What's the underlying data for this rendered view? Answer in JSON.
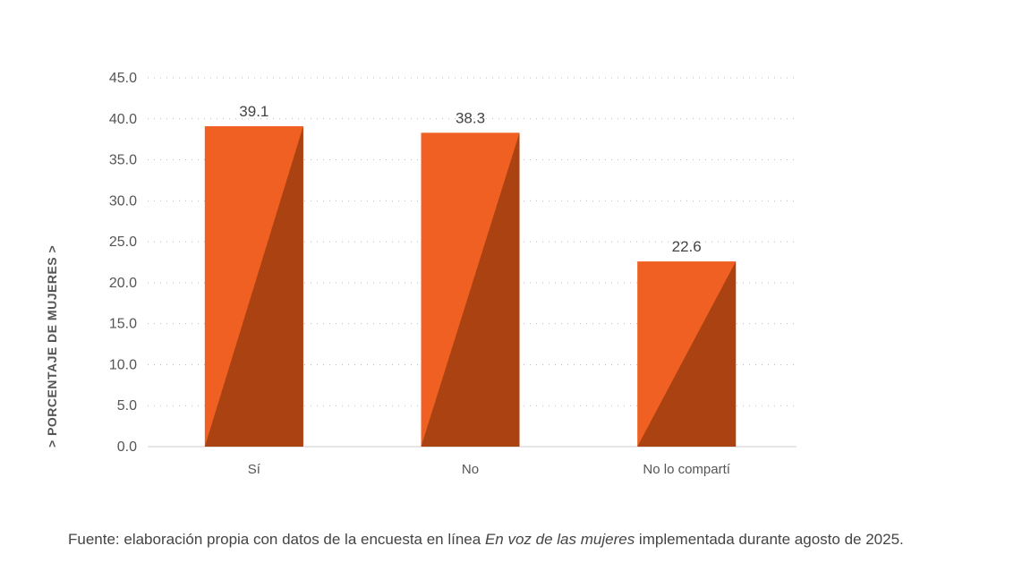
{
  "page": {
    "title_partial": "",
    "source": {
      "prefix": "Fuente: elaboración propia con datos de la encuesta en línea ",
      "survey": "En voz de las mujeres",
      "suffix": " implementada durante agosto de 2025."
    }
  },
  "chart_data": {
    "type": "bar",
    "title": "",
    "xlabel": "",
    "ylabel": "> PORCENTAJE DE MUJERES >",
    "categories": [
      "Sí",
      "No",
      "No lo compartí"
    ],
    "values": [
      39.1,
      38.3,
      22.6
    ],
    "value_labels": [
      "39.1",
      "38.3",
      "22.6"
    ],
    "ylim": [
      0,
      45
    ],
    "yticks": [
      0,
      5,
      10,
      15,
      20,
      25,
      30,
      35,
      40,
      45
    ],
    "ytick_labels": [
      "0.0",
      "5.0",
      "10.0",
      "15.0",
      "20.0",
      "25.0",
      "30.0",
      "35.0",
      "40.0",
      "45.0"
    ],
    "grid": true,
    "legend": "none",
    "colors": {
      "bar_light": "#F06022",
      "bar_dark": "#AA4212",
      "grid": "#BBBBBB",
      "axis": "#CCCCCC",
      "tick_text": "#555555",
      "value_text": "#444444"
    }
  }
}
